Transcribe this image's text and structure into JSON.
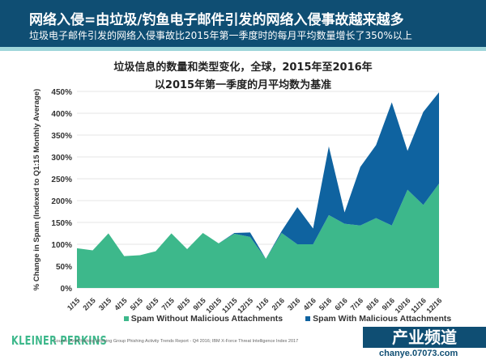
{
  "header": {
    "title": "网络入侵=由垃圾/钓鱼电子邮件引发的网络入侵事故越来越多",
    "subtitle": "垃圾电子邮件引发的网络入侵事故比2015年第一季度时的每月平均数量增长了350%以上"
  },
  "chart_data": {
    "type": "area",
    "stacked": true,
    "title": "垃圾信息的数量和类型变化，全球，2015年至2016年",
    "subtitle": "以2015年第一季度的月平均数为基准",
    "ylabel": "% Change in Spam (Indexed to Q1:15 Monthly Average)",
    "xlabel": "",
    "ylim": [
      0,
      450
    ],
    "yticks": [
      "0%",
      "50%",
      "100%",
      "150%",
      "200%",
      "250%",
      "300%",
      "350%",
      "400%",
      "450%"
    ],
    "grid": true,
    "legend_placement": "bottom",
    "categories": [
      "1/15",
      "2/15",
      "3/15",
      "4/15",
      "5/15",
      "6/15",
      "7/15",
      "8/15",
      "9/15",
      "10/15",
      "11/15",
      "12/15",
      "1/16",
      "2/16",
      "3/16",
      "4/16",
      "5/16",
      "6/16",
      "7/16",
      "8/16",
      "9/16",
      "10/16",
      "11/16",
      "12/16"
    ],
    "series": [
      {
        "name": "Spam Without Malicious Attachments",
        "color": "#3db88b",
        "values": [
          91,
          86,
          125,
          73,
          75,
          84,
          125,
          89,
          126,
          102,
          124,
          117,
          67,
          126,
          100,
          100,
          167,
          147,
          143,
          160,
          143,
          225,
          190,
          239
        ]
      },
      {
        "name": "Spam With Malicious Attachments",
        "color": "#0f63a0",
        "values": [
          0,
          0,
          0,
          0,
          0,
          0,
          0,
          0,
          0,
          0,
          2,
          10,
          0,
          4,
          85,
          36,
          157,
          26,
          134,
          167,
          282,
          89,
          213,
          209
        ]
      }
    ]
  },
  "footer": {
    "brand": "KLEINER PERKINS",
    "source": "Source: AntiPhishing Working Group Phishing Activity Trends Report - Q4 2016; IBM X-Force Threat Intelligence Index 2017"
  },
  "watermark": {
    "main": "产业频道",
    "url": "chanye.07073.com"
  }
}
